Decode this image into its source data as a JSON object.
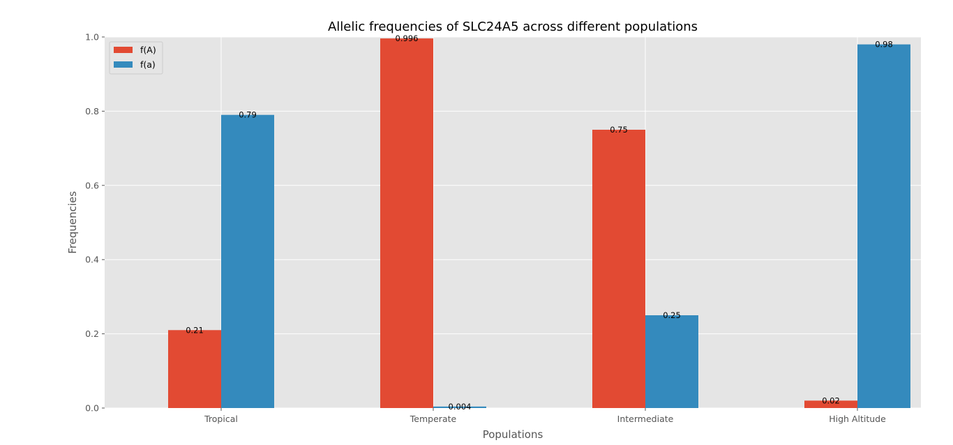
{
  "chart_data": {
    "type": "bar",
    "title": "Allelic frequencies of SLC24A5 across different populations",
    "xlabel": "Populations",
    "ylabel": "Frequencies",
    "categories": [
      "Tropical",
      "Temperate",
      "Intermediate",
      "High Altitude"
    ],
    "series": [
      {
        "name": "f(A)",
        "values": [
          0.21,
          0.996,
          0.75,
          0.02
        ],
        "labels": [
          "0.21",
          "0.996",
          "0.75",
          "0.02"
        ],
        "color": "#E24A33"
      },
      {
        "name": "f(a)",
        "values": [
          0.79,
          0.004,
          0.25,
          0.98
        ],
        "labels": [
          "0.79",
          "0.004",
          "0.25",
          "0.98"
        ],
        "color": "#348ABD"
      }
    ],
    "ylim": [
      0,
      1.0
    ],
    "yticks": [
      0.0,
      0.2,
      0.4,
      0.6,
      0.8,
      1.0
    ],
    "ytick_labels": [
      "0.0",
      "0.2",
      "0.4",
      "0.6",
      "0.8",
      "1.0"
    ],
    "grid": true,
    "legend_position": "top-left",
    "background_color": "#E5E5E5",
    "grid_color": "#FFFFFF"
  }
}
